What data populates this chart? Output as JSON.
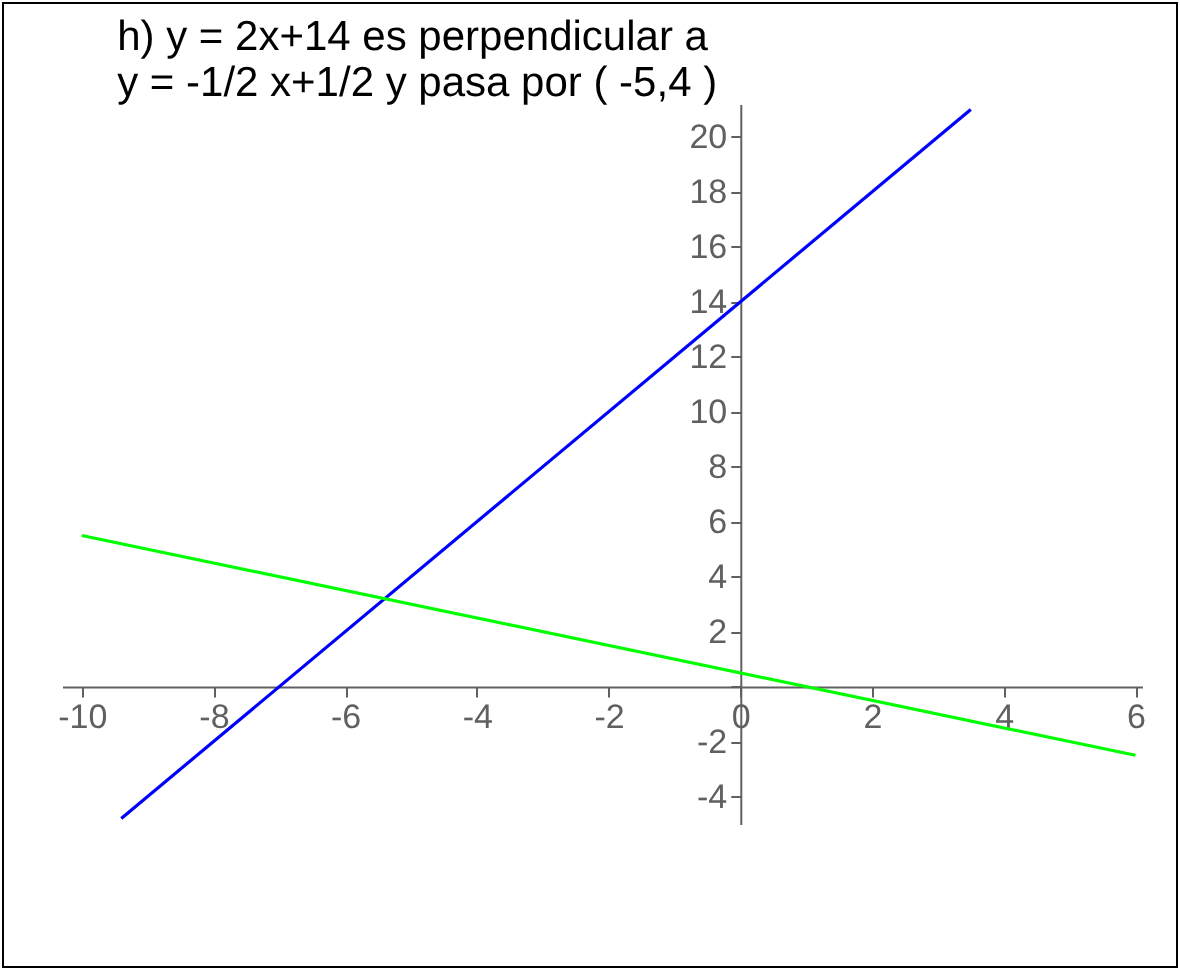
{
  "chart_data": {
    "type": "line",
    "title": [
      "h) y = 2x+14 es perpendicular a",
      "y = -1/2 x+1/2  y pasa por ( -5,4 )"
    ],
    "series": [
      {
        "color": "#0000ff",
        "x": [
          -9.4,
          3.5
        ],
        "values": [
          -4.8,
          21
        ]
      },
      {
        "color": "#00ff00",
        "x": [
          -10,
          6
        ],
        "values": [
          5.5,
          -2.5
        ]
      }
    ],
    "xlim": [
      -10.3,
      6.1
    ],
    "ylim": [
      -5,
      21.2
    ],
    "xticks": [
      -10,
      -8,
      -6,
      -4,
      -2,
      0,
      2,
      4,
      6
    ],
    "yticks": [
      -4,
      -2,
      {
        "value": 0,
        "label": null
      },
      2,
      4,
      6,
      8,
      10,
      12,
      14,
      16,
      18,
      20
    ],
    "grid": false,
    "legend": false,
    "marker": "none",
    "line_style": "solid"
  }
}
